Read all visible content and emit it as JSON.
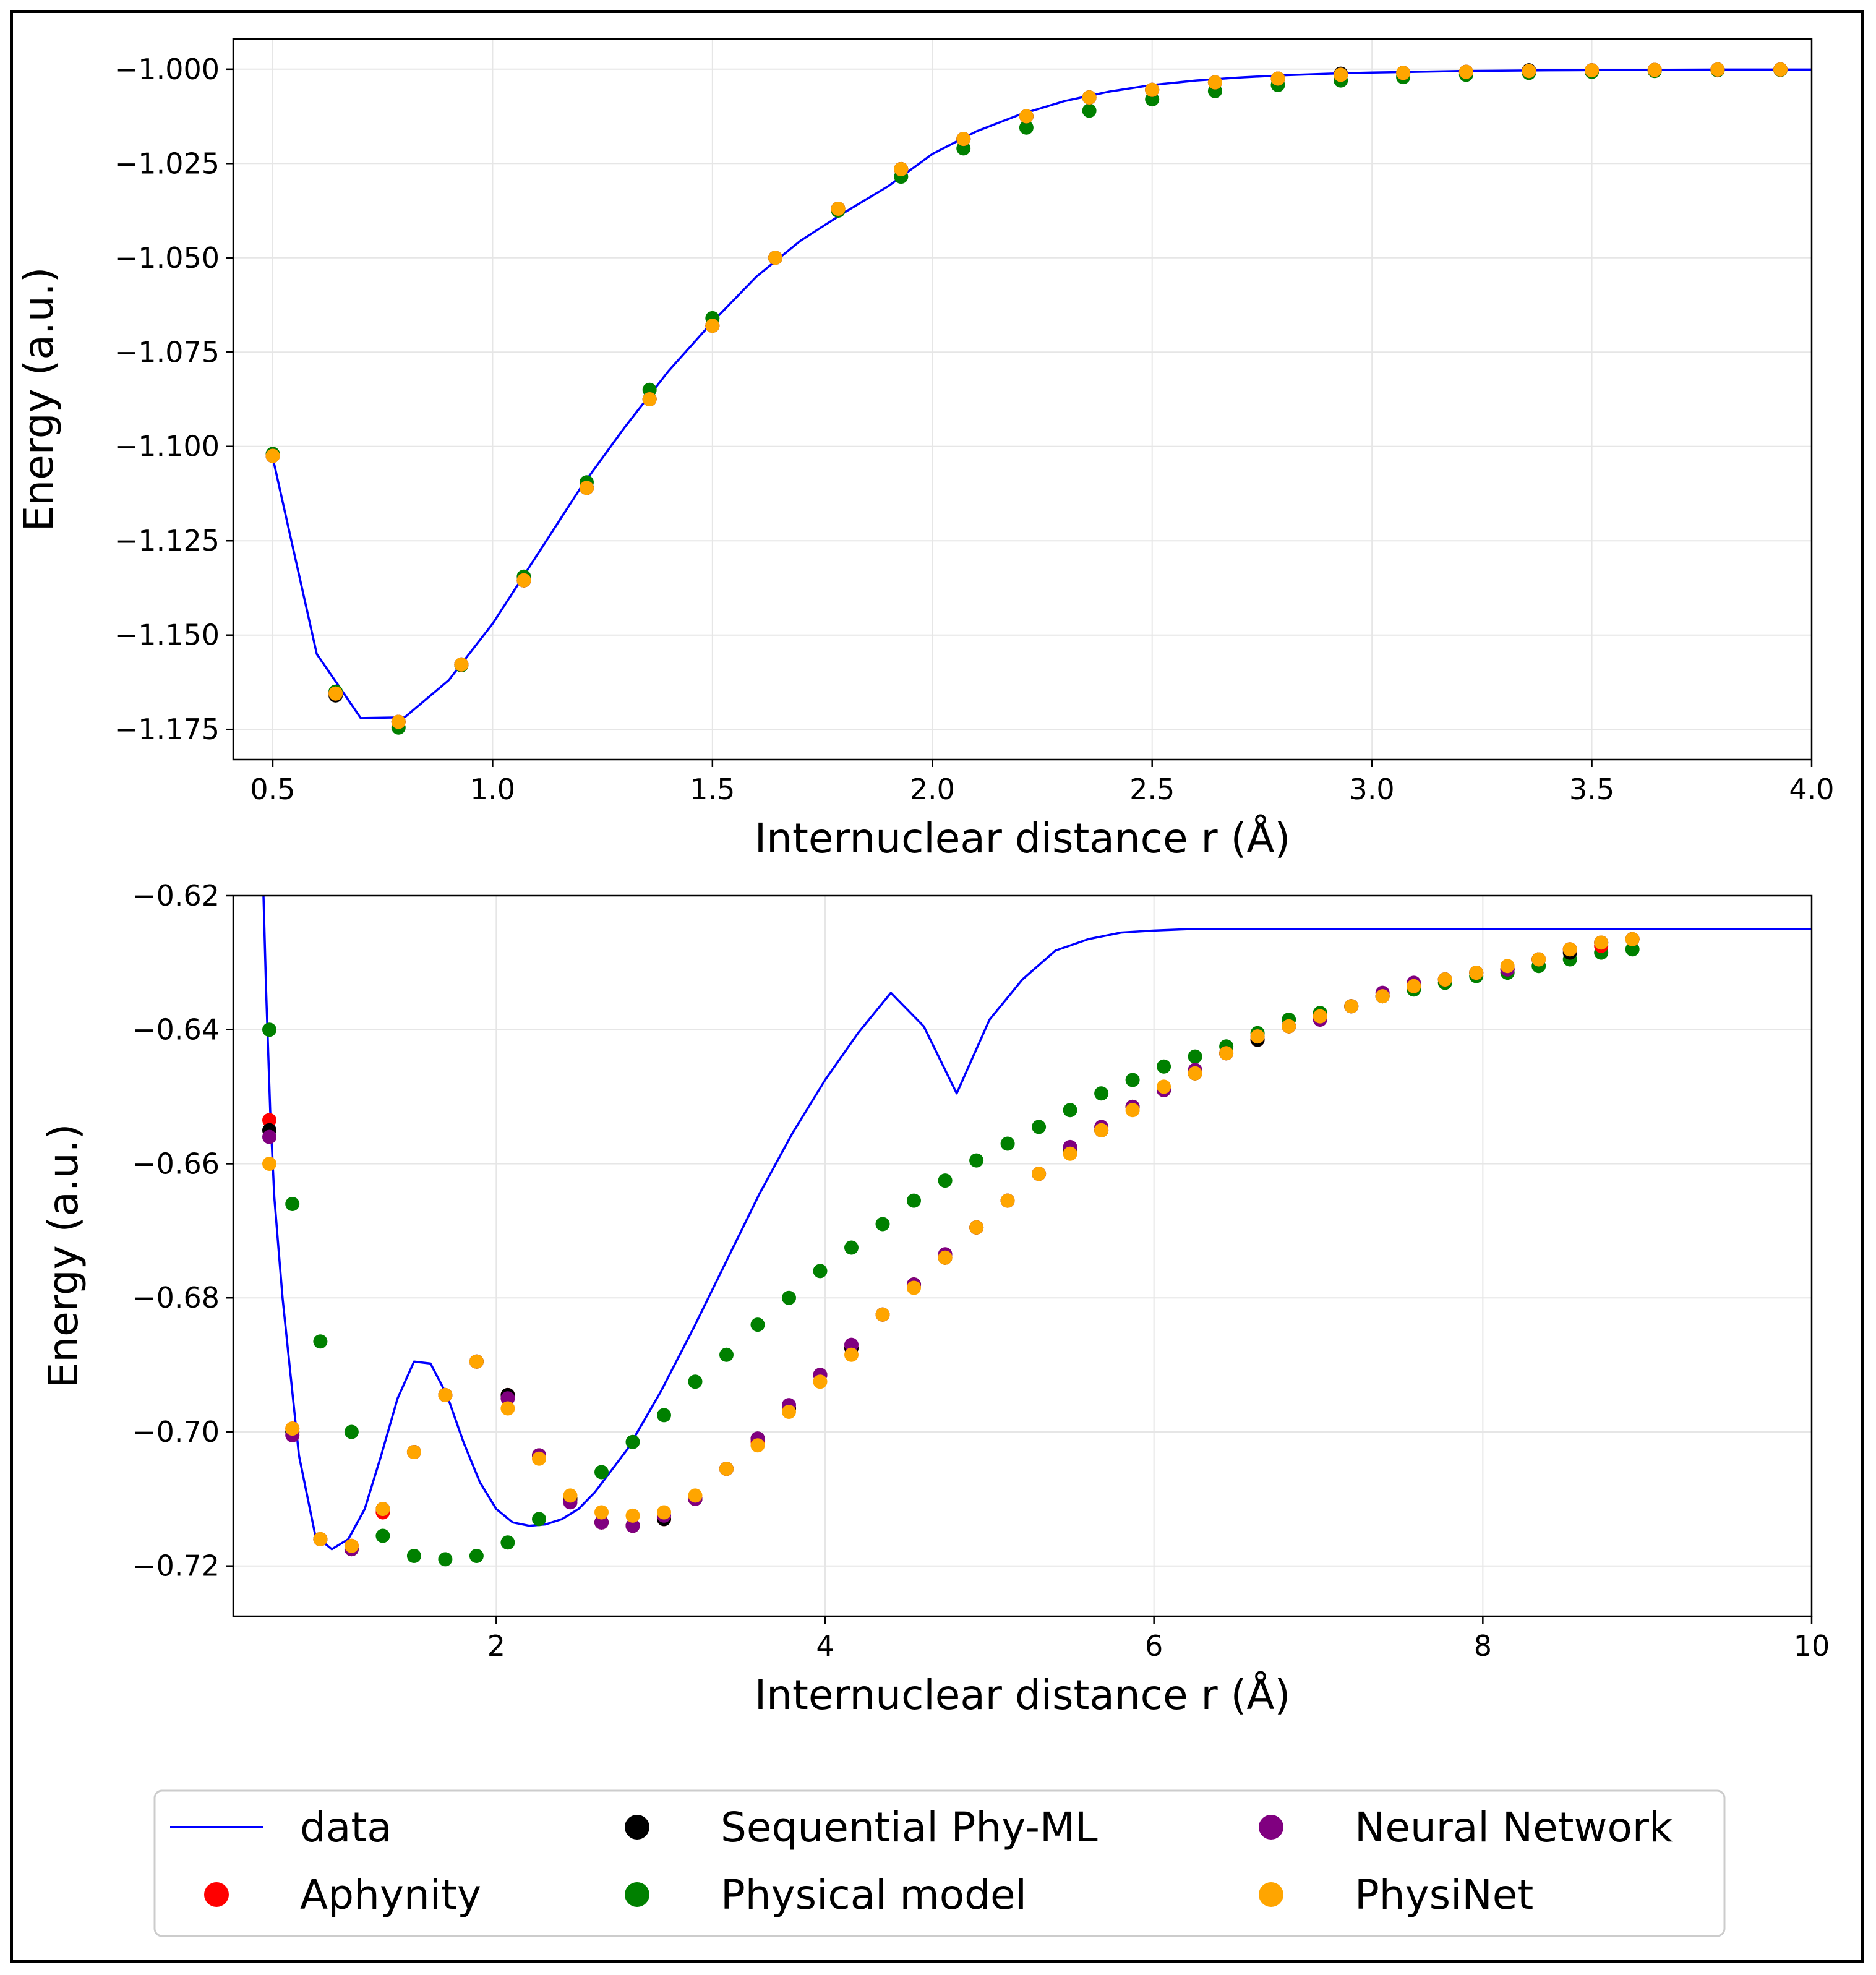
{
  "chart_data": [
    {
      "type": "scatter",
      "title": "",
      "xlabel": "Internuclear distance r (Å)",
      "ylabel": "Energy (a.u.)",
      "xlim": [
        0.41,
        4.0
      ],
      "ylim": [
        -1.183,
        -0.992
      ],
      "x_ticks": [
        0.5,
        1.0,
        1.5,
        2.0,
        2.5,
        3.0,
        3.5,
        4.0
      ],
      "x_tick_labels": [
        "0.5",
        "1.0",
        "1.5",
        "2.0",
        "2.5",
        "3.0",
        "3.5",
        "4.0"
      ],
      "y_ticks": [
        -1.0,
        -1.025,
        -1.05,
        -1.075,
        -1.1,
        -1.125,
        -1.15,
        -1.175
      ],
      "y_tick_labels": [
        "−1.000",
        "−1.025",
        "−1.050",
        "−1.075",
        "−1.100",
        "−1.125",
        "−1.150",
        "−1.175"
      ],
      "grid": true,
      "line": {
        "name": "data",
        "x": [
          0.5,
          0.6,
          0.7,
          0.8,
          0.9,
          1.0,
          1.1,
          1.2,
          1.3,
          1.4,
          1.5,
          1.6,
          1.7,
          1.8,
          1.9,
          2.0,
          2.1,
          2.2,
          2.3,
          2.4,
          2.5,
          2.6,
          2.7,
          2.8,
          2.9,
          3.0,
          3.2,
          3.4,
          3.6,
          3.8,
          4.0
        ],
        "y": [
          -1.103,
          -1.155,
          -1.172,
          -1.1718,
          -1.162,
          -1.147,
          -1.129,
          -1.111,
          -1.095,
          -1.08,
          -1.067,
          -1.055,
          -1.0455,
          -1.038,
          -1.031,
          -1.0225,
          -1.0165,
          -1.012,
          -1.0085,
          -1.006,
          -1.0042,
          -1.003,
          -1.0022,
          -1.0016,
          -1.0012,
          -1.0009,
          -1.0005,
          -1.0003,
          -1.0002,
          -1.0001,
          -1.0001
        ]
      },
      "scatter_x": [
        0.5,
        0.643,
        0.786,
        0.929,
        1.071,
        1.214,
        1.357,
        1.5,
        1.643,
        1.786,
        1.929,
        2.071,
        2.214,
        2.357,
        2.5,
        2.643,
        2.786,
        2.929,
        3.071,
        3.214,
        3.357,
        3.5,
        3.643,
        3.786,
        3.929
      ],
      "series": [
        {
          "name": "Physical model",
          "color": "#008000",
          "values": [
            -1.102,
            -1.165,
            -1.1745,
            -1.158,
            -1.1345,
            -1.1095,
            -1.085,
            -1.066,
            -1.05,
            -1.0375,
            -1.0285,
            -1.021,
            -1.0155,
            -1.011,
            -1.008,
            -1.0058,
            -1.0042,
            -1.003,
            -1.0021,
            -1.0015,
            -1.001,
            -1.0007,
            -1.0005,
            -1.0003,
            -1.0002
          ]
        },
        {
          "name": "Aphynity",
          "color": "#ff0000",
          "values": [
            -1.1025,
            -1.1655,
            -1.173,
            -1.1578,
            -1.1355,
            -1.111,
            -1.0875,
            -1.068,
            -1.05,
            -1.037,
            -1.0265,
            -1.0185,
            -1.0125,
            -1.0075,
            -1.0055,
            -1.0035,
            -1.0025,
            -1.0015,
            -1.001,
            -1.0007,
            -1.0005,
            -1.0003,
            -1.0002,
            -1.0001,
            -1.0001
          ]
        },
        {
          "name": "Sequential Phy-ML",
          "color": "#000000",
          "values": [
            -1.1025,
            -1.166,
            -1.173,
            -1.1578,
            -1.1355,
            -1.111,
            -1.0875,
            -1.068,
            -1.05,
            -1.037,
            -1.0265,
            -1.0185,
            -1.0125,
            -1.0075,
            -1.0055,
            -1.0035,
            -1.0025,
            -1.0012,
            -1.001,
            -1.0007,
            -1.0003,
            -1.0003,
            -1.0002,
            -1.0001,
            -1.0001
          ]
        },
        {
          "name": "Neural Network",
          "color": "#800080",
          "values": [
            -1.1025,
            -1.1655,
            -1.173,
            -1.1578,
            -1.1355,
            -1.111,
            -1.0875,
            -1.068,
            -1.05,
            -1.037,
            -1.0265,
            -1.0185,
            -1.0125,
            -1.0075,
            -1.0055,
            -1.0035,
            -1.0025,
            -1.0015,
            -1.001,
            -1.0007,
            -1.0005,
            -1.0003,
            -1.0002,
            -1.0001,
            -1.0001
          ]
        },
        {
          "name": "PhysiNet",
          "color": "#ffa500",
          "values": [
            -1.1025,
            -1.1655,
            -1.173,
            -1.1578,
            -1.1355,
            -1.111,
            -1.0875,
            -1.068,
            -1.05,
            -1.037,
            -1.0265,
            -1.0185,
            -1.0125,
            -1.0075,
            -1.0055,
            -1.0035,
            -1.0025,
            -1.0015,
            -1.001,
            -1.0007,
            -1.0005,
            -1.0003,
            -1.0002,
            -1.0001,
            -1.0001
          ]
        }
      ]
    },
    {
      "type": "scatter",
      "title": "",
      "xlabel": "Internuclear distance r (Å)",
      "ylabel": "Energy (a.u.)",
      "xlim": [
        0.4,
        10.0
      ],
      "ylim": [
        -0.7275,
        -0.62
      ],
      "x_ticks": [
        2,
        4,
        6,
        8,
        10
      ],
      "x_tick_labels": [
        "2",
        "4",
        "6",
        "8",
        "10"
      ],
      "y_ticks": [
        -0.62,
        -0.64,
        -0.66,
        -0.68,
        -0.7,
        -0.72
      ],
      "y_tick_labels": [
        "−0.62",
        "−0.64",
        "−0.66",
        "−0.68",
        "−0.70",
        "−0.72"
      ],
      "grid": true,
      "line": {
        "name": "data",
        "x": [
          0.58,
          0.6,
          0.625,
          0.65,
          0.7,
          0.8,
          0.9,
          1.0,
          1.1,
          1.2,
          1.3,
          1.4,
          1.5,
          1.6,
          1.7,
          1.8,
          1.9,
          2.0,
          2.1,
          2.2,
          2.3,
          2.4,
          2.5,
          2.6,
          2.8,
          3.0,
          3.2,
          3.4,
          3.6,
          3.8,
          4.0,
          4.2,
          4.4,
          4.6,
          4.8,
          5.0,
          5.2,
          5.4,
          5.6,
          5.8,
          6.0,
          6.2,
          6.4,
          6.6,
          6.8,
          7.0,
          7.2,
          7.5,
          8.0,
          8.5,
          9.0,
          9.5,
          10.0
        ],
        "y": [
          -0.616,
          -0.634,
          -0.652,
          -0.665,
          -0.68,
          -0.7035,
          -0.7155,
          -0.7175,
          -0.716,
          -0.7115,
          -0.7035,
          -0.695,
          -0.6895,
          -0.6898,
          -0.6945,
          -0.7015,
          -0.7075,
          -0.7115,
          -0.7135,
          -0.714,
          -0.7138,
          -0.713,
          -0.7115,
          -0.709,
          -0.7025,
          -0.694,
          -0.6845,
          -0.6745,
          -0.6645,
          -0.6555,
          -0.6475,
          -0.6405,
          -0.6345,
          -0.6395,
          -0.6495,
          -0.6385,
          -0.6325,
          -0.6282,
          -0.6265,
          -0.6255,
          -0.6252,
          -0.625,
          -0.625,
          -0.625,
          -0.625,
          -0.625,
          -0.625,
          -0.625,
          -0.625,
          -0.625,
          -0.625,
          -0.625,
          -0.625
        ]
      },
      "scatter_x": [
        0.62,
        0.76,
        0.93,
        1.12,
        1.31,
        1.5,
        1.69,
        1.88,
        2.07,
        2.26,
        2.45,
        2.64,
        2.83,
        3.02,
        3.21,
        3.4,
        3.59,
        3.78,
        3.97,
        4.16,
        4.35,
        4.54,
        4.73,
        4.92,
        5.11,
        5.3,
        5.49,
        5.68,
        5.87,
        6.06,
        6.25,
        6.44,
        6.63,
        6.82,
        7.01,
        7.2,
        7.39,
        7.58,
        7.77,
        7.96,
        8.15,
        8.34,
        8.53,
        8.72,
        8.91
      ],
      "series": [
        {
          "name": "Physical model",
          "color": "#008000",
          "values": [
            -0.64,
            -0.666,
            -0.6865,
            -0.7,
            -0.7155,
            -0.7185,
            -0.719,
            -0.7185,
            -0.7165,
            -0.713,
            -0.71,
            -0.706,
            -0.7015,
            -0.6975,
            -0.6925,
            -0.6885,
            -0.684,
            -0.68,
            -0.676,
            -0.6725,
            -0.669,
            -0.6655,
            -0.6625,
            -0.6595,
            -0.657,
            -0.6545,
            -0.652,
            -0.6495,
            -0.6475,
            -0.6455,
            -0.644,
            -0.6425,
            -0.6405,
            -0.6385,
            -0.6375,
            -0.6365,
            -0.635,
            -0.634,
            -0.633,
            -0.632,
            -0.6315,
            -0.6305,
            -0.6295,
            -0.6285,
            -0.628
          ]
        },
        {
          "name": "Aphynity",
          "color": "#ff0000",
          "values": [
            -0.6535,
            -0.6995,
            -0.716,
            -0.717,
            -0.712,
            -0.703,
            -0.6945,
            -0.6895,
            -0.6945,
            -0.7035,
            -0.71,
            -0.7135,
            -0.714,
            -0.713,
            -0.71,
            -0.7055,
            -0.7015,
            -0.6965,
            -0.6915,
            -0.6875,
            -0.6825,
            -0.678,
            -0.674,
            -0.6695,
            -0.6655,
            -0.6615,
            -0.658,
            -0.655,
            -0.6515,
            -0.649,
            -0.6465,
            -0.6435,
            -0.6415,
            -0.6395,
            -0.638,
            -0.6365,
            -0.635,
            -0.6335,
            -0.6325,
            -0.6315,
            -0.631,
            -0.6295,
            -0.628,
            -0.6275,
            -0.6265
          ]
        },
        {
          "name": "Sequential Phy-ML",
          "color": "#000000",
          "values": [
            -0.655,
            -0.7,
            -0.716,
            -0.7175,
            -0.7115,
            -0.703,
            -0.6945,
            -0.6895,
            -0.6945,
            -0.7035,
            -0.71,
            -0.7135,
            -0.714,
            -0.713,
            -0.71,
            -0.7055,
            -0.701,
            -0.6965,
            -0.6915,
            -0.6875,
            -0.6825,
            -0.678,
            -0.674,
            -0.6695,
            -0.6655,
            -0.6615,
            -0.658,
            -0.655,
            -0.6515,
            -0.649,
            -0.6465,
            -0.6435,
            -0.6415,
            -0.6395,
            -0.638,
            -0.6365,
            -0.635,
            -0.6335,
            -0.6325,
            -0.6315,
            -0.631,
            -0.6295,
            -0.6285,
            -0.627,
            -0.6265
          ]
        },
        {
          "name": "Neural Network",
          "color": "#800080",
          "values": [
            -0.656,
            -0.7005,
            -0.716,
            -0.7175,
            -0.7115,
            -0.703,
            -0.6945,
            -0.6895,
            -0.695,
            -0.7035,
            -0.7105,
            -0.7135,
            -0.714,
            -0.7125,
            -0.71,
            -0.7055,
            -0.701,
            -0.696,
            -0.6915,
            -0.687,
            -0.6825,
            -0.678,
            -0.6735,
            -0.6695,
            -0.6655,
            -0.6615,
            -0.6575,
            -0.6545,
            -0.6515,
            -0.649,
            -0.646,
            -0.6435,
            -0.641,
            -0.6395,
            -0.6385,
            -0.6365,
            -0.6345,
            -0.633,
            -0.6325,
            -0.6315,
            -0.631,
            -0.6295,
            -0.628,
            -0.627,
            -0.6265
          ]
        },
        {
          "name": "PhysiNet",
          "color": "#ffa500",
          "values": [
            -0.66,
            -0.6995,
            -0.716,
            -0.717,
            -0.7115,
            -0.703,
            -0.6945,
            -0.6895,
            -0.6965,
            -0.704,
            -0.7095,
            -0.712,
            -0.7125,
            -0.712,
            -0.7095,
            -0.7055,
            -0.702,
            -0.697,
            -0.6925,
            -0.6885,
            -0.6825,
            -0.6785,
            -0.674,
            -0.6695,
            -0.6655,
            -0.6615,
            -0.6585,
            -0.655,
            -0.652,
            -0.6485,
            -0.6465,
            -0.6435,
            -0.641,
            -0.6395,
            -0.638,
            -0.6365,
            -0.635,
            -0.6335,
            -0.6325,
            -0.6315,
            -0.6305,
            -0.6295,
            -0.628,
            -0.627,
            -0.6265
          ]
        }
      ]
    }
  ],
  "legend": {
    "placement": "bottom-center",
    "columns": 3,
    "entries": [
      {
        "label": "data",
        "color": "#0000ff",
        "marker": "line"
      },
      {
        "label": "Sequential Phy-ML",
        "color": "#000000",
        "marker": "circle"
      },
      {
        "label": "Neural Network",
        "color": "#800080",
        "marker": "circle"
      },
      {
        "label": "Aphynity",
        "color": "#ff0000",
        "marker": "circle"
      },
      {
        "label": "Physical model",
        "color": "#008000",
        "marker": "circle"
      },
      {
        "label": "PhysiNet",
        "color": "#ffa500",
        "marker": "circle"
      }
    ]
  }
}
